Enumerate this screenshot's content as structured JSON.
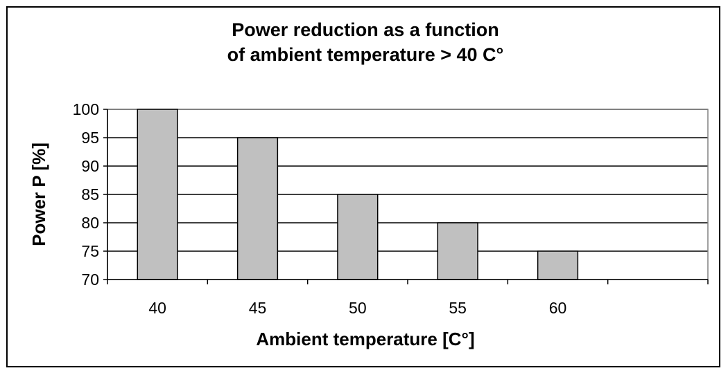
{
  "chart_data": {
    "type": "bar",
    "title": [
      "Power reduction as a function",
      "of ambient temperature > 40 C°"
    ],
    "xlabel": "Ambient temperature [C°]",
    "ylabel": "Power P [%]",
    "categories": [
      "40",
      "45",
      "50",
      "55",
      "60",
      ""
    ],
    "values": [
      100,
      95,
      85,
      80,
      75,
      null
    ],
    "ylim": [
      70,
      100
    ],
    "yticks": [
      70,
      75,
      80,
      85,
      90,
      95,
      100
    ],
    "grid": true,
    "legend": "none",
    "colors": {
      "bar_fill": "#c0c0c0",
      "bar_stroke": "#000000",
      "grid": "#000000",
      "border": "#000000"
    }
  }
}
